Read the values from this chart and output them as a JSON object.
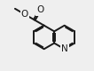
{
  "bg_color": "#efefef",
  "bond_color": "#1a1a1a",
  "bond_width": 1.4,
  "figsize": [
    1.06,
    0.8
  ],
  "dpi": 100,
  "font_size": 7.5,
  "N_label": "N",
  "O_label": "O"
}
